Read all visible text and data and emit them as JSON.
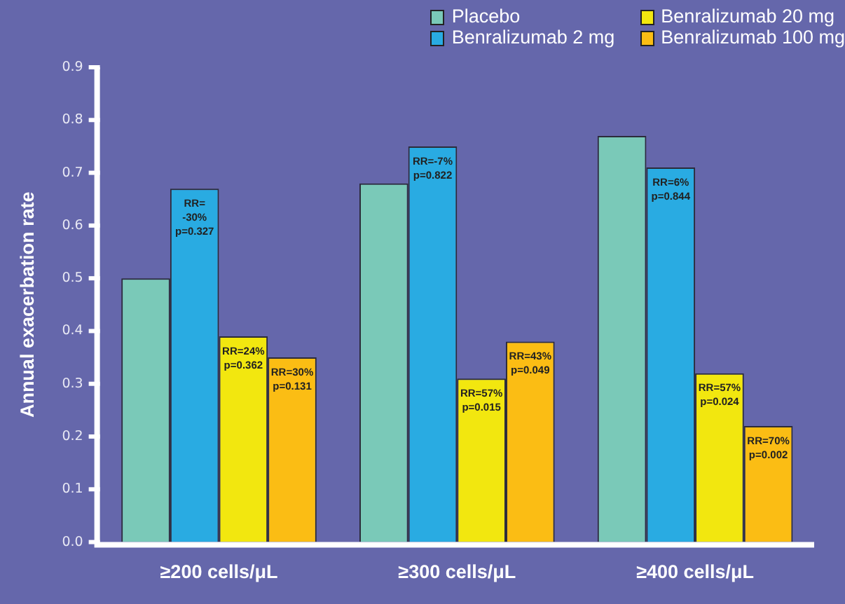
{
  "chart_data": {
    "type": "bar",
    "ylabel": "Annual exacerbation rate",
    "categories": [
      "≥200 cells/μL",
      "≥300 cells/μL",
      "≥400 cells/μL"
    ],
    "series": [
      {
        "name": "Placebo",
        "color": "#7ac9b8",
        "values": [
          0.5,
          0.68,
          0.77
        ]
      },
      {
        "name": "Benralizumab 2 mg",
        "color": "#29abe2",
        "values": [
          0.67,
          0.75,
          0.71
        ]
      },
      {
        "name": "Benralizumab 20 mg",
        "color": "#f2e70f",
        "values": [
          0.39,
          0.31,
          0.32
        ]
      },
      {
        "name": "Benralizumab 100 mg",
        "color": "#fbbd14",
        "values": [
          0.35,
          0.38,
          0.22
        ]
      }
    ],
    "annotations": [
      {
        "text": "RR=\n-30%\np=0.327",
        "x": "≥200 cells/μL",
        "y": 0.67
      },
      {
        "text": "RR=-7%\np=0.822",
        "x": "≥300 cells/μL",
        "y": 0.75
      },
      {
        "text": "RR=6%\np=0.844",
        "x": "≥400 cells/μL",
        "y": 0.71
      },
      {
        "text": "RR=24%\np=0.362",
        "x": "≥200 cells/μL",
        "y": 0.39
      },
      {
        "text": "RR=57%\np=0.015",
        "x": "≥300 cells/μL",
        "y": 0.31
      },
      {
        "text": "RR=57%\np=0.024",
        "x": "≥400 cells/μL",
        "y": 0.32
      },
      "RR=30%\np=0.131",
      "RR=43%\np=0.049",
      "RR=70%\np=0.002"
    ],
    "ylim": [
      0,
      0.9
    ],
    "yticks": [
      {
        "value": 0,
        "label": "0.0"
      },
      0.1,
      0.2,
      0.3,
      0.4,
      0.5,
      0.6,
      0.7,
      0.8,
      0.9
    ],
    "grid": false,
    "legend": "top right"
  }
}
